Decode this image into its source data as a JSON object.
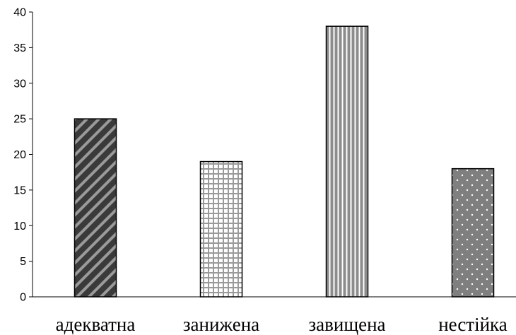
{
  "chart_data": {
    "type": "bar",
    "categories": [
      "адекватна",
      "занижена",
      "завищена",
      "нестійка"
    ],
    "values": [
      25,
      19,
      38,
      18
    ],
    "ylim": [
      0,
      40
    ],
    "yticks": [
      0,
      5,
      10,
      15,
      20,
      25,
      30,
      35,
      40
    ],
    "title": "",
    "xlabel": "",
    "ylabel": "",
    "grid": false,
    "legend": "none",
    "bar_patterns": [
      "diagonal-stripes-dark",
      "grid-checks-light",
      "vertical-stripes-gray",
      "dots-on-gray"
    ]
  }
}
